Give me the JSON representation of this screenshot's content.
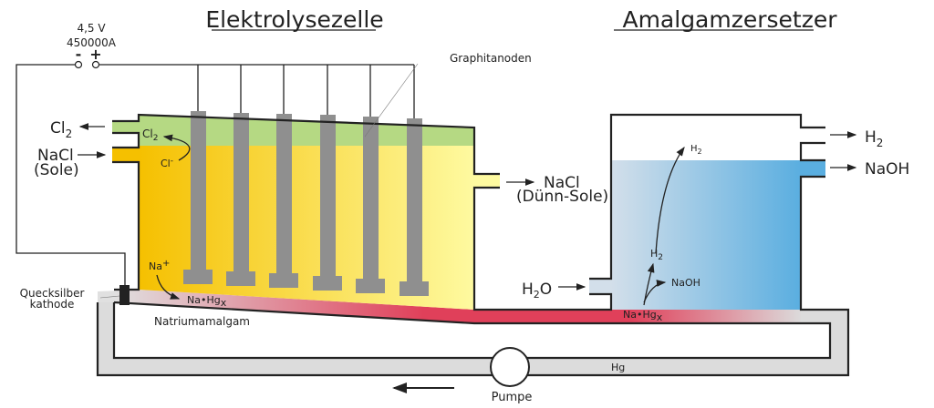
{
  "titles": {
    "left": "Elektrolysezelle",
    "right": "Amalgamzersetzer"
  },
  "power": {
    "voltage": "4,5 V",
    "current": "450000A",
    "minus": "-",
    "plus": "+"
  },
  "labels": {
    "graphitanoden": "Graphitanoden",
    "cl2_out": "Cl",
    "cl2_out_sub": "2",
    "nacl_in": "NaCl",
    "sole": "(Sole)",
    "cl2_inner": "Cl",
    "cl2_inner_sub": "2",
    "cl_ion": "Cl",
    "cl_ion_sup": "-",
    "na_ion": "Na",
    "na_ion_sup": "+",
    "nahg_left": "Na•Hg",
    "nahg_left_sub": "x",
    "cathode_1": "Quecksilber",
    "cathode_2": "kathode",
    "natriumamalgam": "Natriumamalgam",
    "nacl_out": "NaCl",
    "duenn_sole": "(Dünn-Sole)",
    "h2o": "H",
    "h2o_sub": "2",
    "h2o_end": "O",
    "h2_top": "H",
    "h2_top_sub": "2",
    "h2_mid": "H",
    "h2_mid_sub": "2",
    "naoh_inner": "NaOH",
    "nahg_right": "Na•Hg",
    "nahg_right_sub": "x",
    "h2_out": "H",
    "h2_out_sub": "2",
    "naoh_out": "NaOH",
    "hg": "Hg",
    "pumpe": "Pumpe"
  },
  "colors": {
    "chlorine_gas": "#b5d983",
    "brine_dark": "#f5c000",
    "brine_light": "#fefaa0",
    "anode": "#8f8f8f",
    "amalgam": "#e0405a",
    "mercury": "#dcdcdc",
    "naoh_light": "#d3dfea",
    "naoh_dark": "#5aaee0"
  }
}
